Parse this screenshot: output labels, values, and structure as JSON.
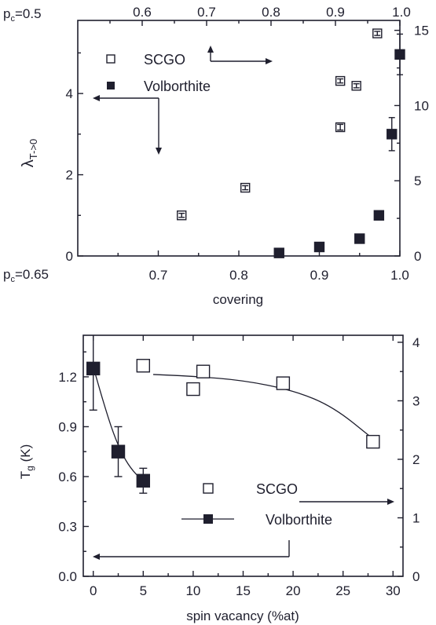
{
  "chart_data": [
    {
      "type": "scatter",
      "xlabel": "covering",
      "ylabel_main": "λ",
      "ylabel_sub": "T->0",
      "xlim": [
        0.6,
        1.0
      ],
      "ylim": [
        0,
        5.8
      ],
      "bottom_axis_prefix": "p",
      "bottom_axis_prefix_sub": "c",
      "bottom_axis_prefix_rest": "=0.65",
      "bottom_ticks": [
        "0.7",
        "0.8",
        "0.9",
        "1.0"
      ],
      "top_axis_prefix": "p",
      "top_axis_prefix_sub": "c",
      "top_axis_prefix_rest": "=0.5",
      "top_ticks": [
        "0.6",
        "0.7",
        "0.8",
        "0.9",
        "1.0"
      ],
      "left_ticks": [
        "0",
        "2",
        "4"
      ],
      "right_ticks": [
        "0",
        "5",
        "10",
        "15"
      ],
      "right_ylim": [
        0,
        15.66
      ],
      "series": [
        {
          "name": "SCGO",
          "marker": "open-square",
          "axis": "left",
          "points": [
            {
              "x": 0.729,
              "y": 1.0,
              "err": 0.05
            },
            {
              "x": 0.808,
              "y": 1.68,
              "err": 0.05
            },
            {
              "x": 0.926,
              "y": 3.17,
              "err": 0.07
            },
            {
              "x": 0.926,
              "y": 4.31,
              "err": 0.05
            },
            {
              "x": 0.946,
              "y": 4.19,
              "err": 0.05
            },
            {
              "x": 0.972,
              "y": 5.48,
              "err": 0.05
            }
          ]
        },
        {
          "name": "Volborthite",
          "marker": "filled-square",
          "axis": "right",
          "points": [
            {
              "x": 0.85,
              "y": 0.2,
              "err": 0
            },
            {
              "x": 0.9,
              "y": 0.6,
              "err": 0
            },
            {
              "x": 0.95,
              "y": 1.15,
              "err": 0
            },
            {
              "x": 0.974,
              "y": 2.7,
              "err": 0
            },
            {
              "x": 0.99,
              "y": 8.1,
              "err": 1.1
            },
            {
              "x": 1.0,
              "y": 13.4,
              "err": 1.35
            }
          ]
        }
      ],
      "legend": [
        "SCGO",
        "Volborthite"
      ]
    },
    {
      "type": "scatter",
      "xlabel": "spin vacancy (%at)",
      "ylabel_main": "T",
      "ylabel_sub": "g",
      "ylabel_rest": " (K)",
      "xlim": [
        -1,
        31
      ],
      "ylim": [
        0,
        1.45
      ],
      "x_ticks": [
        "0",
        "5",
        "10",
        "15",
        "20",
        "25",
        "30"
      ],
      "left_ticks": [
        "0.0",
        "0.3",
        "0.6",
        "0.9",
        "1.2"
      ],
      "right_ticks": [
        "0",
        "1",
        "2",
        "3",
        "4"
      ],
      "right_ylim": [
        0,
        4.12
      ],
      "series": [
        {
          "name": "SCGO",
          "marker": "open-square",
          "axis": "right",
          "points": [
            {
              "x": 5,
              "y": 3.6
            },
            {
              "x": 10,
              "y": 3.2
            },
            {
              "x": 11,
              "y": 3.5
            },
            {
              "x": 19,
              "y": 3.3
            },
            {
              "x": 28,
              "y": 2.3
            }
          ],
          "fit_curve": [
            [
              6,
              3.45
            ],
            [
              10,
              3.42
            ],
            [
              15,
              3.35
            ],
            [
              20,
              3.18
            ],
            [
              24,
              2.9
            ],
            [
              28,
              2.35
            ]
          ]
        },
        {
          "name": "Volborthite",
          "marker": "filled-square",
          "axis": "left",
          "points": [
            {
              "x": 0,
              "y": 1.25,
              "err": 0.25
            },
            {
              "x": 2.5,
              "y": 0.75,
              "err": 0.15
            },
            {
              "x": 5,
              "y": 0.575,
              "err": 0.075
            }
          ],
          "fit_curve": [
            [
              0,
              1.26
            ],
            [
              1,
              1.05
            ],
            [
              2,
              0.86
            ],
            [
              3,
              0.72
            ],
            [
              4,
              0.63
            ],
            [
              5,
              0.575
            ]
          ]
        }
      ],
      "legend": [
        "SCGO",
        "Volborthite"
      ]
    }
  ]
}
